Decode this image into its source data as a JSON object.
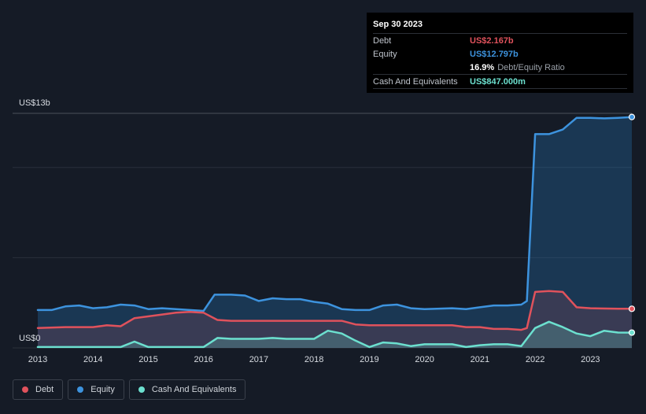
{
  "tooltip": {
    "date": "Sep 30 2023",
    "debt_label": "Debt",
    "debt_value": "US$2.167b",
    "equity_label": "Equity",
    "equity_value": "US$12.797b",
    "ratio_value": "16.9%",
    "ratio_label": "Debt/Equity Ratio",
    "cash_label": "Cash And Equivalents",
    "cash_value": "US$847.000m"
  },
  "colors": {
    "debt": "#e0525c",
    "equity": "#3d93de",
    "cash": "#6ce0cf",
    "background": "#151b26",
    "grid": "#2a303b"
  },
  "chart_data": {
    "type": "area",
    "ylabel_top": "US$13b",
    "ylabel_bottom": "US$0",
    "ylim": [
      0,
      13
    ],
    "xlim": [
      2013.0,
      2023.75
    ],
    "x_ticks": [
      "2013",
      "2014",
      "2015",
      "2016",
      "2017",
      "2018",
      "2019",
      "2020",
      "2021",
      "2022",
      "2023"
    ],
    "grid": true,
    "legend_position": "bottom-left",
    "series": [
      {
        "name": "Debt",
        "color": "#e0525c",
        "points": [
          [
            2013.0,
            1.1
          ],
          [
            2013.5,
            1.15
          ],
          [
            2014.0,
            1.15
          ],
          [
            2014.25,
            1.25
          ],
          [
            2014.5,
            1.2
          ],
          [
            2014.75,
            1.65
          ],
          [
            2015.25,
            1.85
          ],
          [
            2015.5,
            1.95
          ],
          [
            2015.75,
            2.0
          ],
          [
            2016.0,
            1.95
          ],
          [
            2016.25,
            1.55
          ],
          [
            2016.5,
            1.5
          ],
          [
            2017.0,
            1.5
          ],
          [
            2017.5,
            1.5
          ],
          [
            2018.0,
            1.5
          ],
          [
            2018.5,
            1.5
          ],
          [
            2018.75,
            1.3
          ],
          [
            2019.0,
            1.25
          ],
          [
            2019.5,
            1.25
          ],
          [
            2020.0,
            1.25
          ],
          [
            2020.5,
            1.25
          ],
          [
            2020.75,
            1.15
          ],
          [
            2021.0,
            1.15
          ],
          [
            2021.25,
            1.05
          ],
          [
            2021.5,
            1.05
          ],
          [
            2021.75,
            1.0
          ],
          [
            2021.85,
            1.1
          ],
          [
            2022.0,
            3.1
          ],
          [
            2022.25,
            3.15
          ],
          [
            2022.5,
            3.1
          ],
          [
            2022.75,
            2.25
          ],
          [
            2023.0,
            2.2
          ],
          [
            2023.5,
            2.17
          ],
          [
            2023.75,
            2.167
          ]
        ]
      },
      {
        "name": "Equity",
        "color": "#3d93de",
        "points": [
          [
            2013.0,
            2.1
          ],
          [
            2013.25,
            2.1
          ],
          [
            2013.5,
            2.3
          ],
          [
            2013.75,
            2.35
          ],
          [
            2014.0,
            2.2
          ],
          [
            2014.25,
            2.25
          ],
          [
            2014.5,
            2.4
          ],
          [
            2014.75,
            2.35
          ],
          [
            2015.0,
            2.15
          ],
          [
            2015.25,
            2.2
          ],
          [
            2015.5,
            2.15
          ],
          [
            2015.75,
            2.1
          ],
          [
            2016.0,
            2.05
          ],
          [
            2016.2,
            2.95
          ],
          [
            2016.5,
            2.95
          ],
          [
            2016.75,
            2.9
          ],
          [
            2017.0,
            2.6
          ],
          [
            2017.25,
            2.75
          ],
          [
            2017.5,
            2.7
          ],
          [
            2017.75,
            2.7
          ],
          [
            2018.0,
            2.55
          ],
          [
            2018.25,
            2.45
          ],
          [
            2018.5,
            2.15
          ],
          [
            2018.75,
            2.1
          ],
          [
            2019.0,
            2.1
          ],
          [
            2019.25,
            2.35
          ],
          [
            2019.5,
            2.4
          ],
          [
            2019.75,
            2.2
          ],
          [
            2020.0,
            2.15
          ],
          [
            2020.5,
            2.2
          ],
          [
            2020.75,
            2.15
          ],
          [
            2021.0,
            2.25
          ],
          [
            2021.25,
            2.35
          ],
          [
            2021.5,
            2.35
          ],
          [
            2021.75,
            2.4
          ],
          [
            2021.85,
            2.6
          ],
          [
            2022.0,
            11.85
          ],
          [
            2022.25,
            11.85
          ],
          [
            2022.5,
            12.1
          ],
          [
            2022.75,
            12.75
          ],
          [
            2023.0,
            12.75
          ],
          [
            2023.25,
            12.72
          ],
          [
            2023.5,
            12.75
          ],
          [
            2023.75,
            12.797
          ]
        ]
      },
      {
        "name": "Cash And Equivalents",
        "color": "#6ce0cf",
        "points": [
          [
            2013.0,
            0.05
          ],
          [
            2013.5,
            0.05
          ],
          [
            2014.0,
            0.05
          ],
          [
            2014.5,
            0.05
          ],
          [
            2014.75,
            0.35
          ],
          [
            2015.0,
            0.05
          ],
          [
            2015.5,
            0.05
          ],
          [
            2016.0,
            0.05
          ],
          [
            2016.25,
            0.55
          ],
          [
            2016.5,
            0.5
          ],
          [
            2017.0,
            0.5
          ],
          [
            2017.25,
            0.55
          ],
          [
            2017.5,
            0.5
          ],
          [
            2018.0,
            0.5
          ],
          [
            2018.25,
            0.95
          ],
          [
            2018.5,
            0.8
          ],
          [
            2018.75,
            0.4
          ],
          [
            2019.0,
            0.05
          ],
          [
            2019.25,
            0.3
          ],
          [
            2019.5,
            0.25
          ],
          [
            2019.75,
            0.1
          ],
          [
            2020.0,
            0.2
          ],
          [
            2020.5,
            0.2
          ],
          [
            2020.75,
            0.05
          ],
          [
            2021.0,
            0.15
          ],
          [
            2021.25,
            0.2
          ],
          [
            2021.5,
            0.2
          ],
          [
            2021.75,
            0.1
          ],
          [
            2022.0,
            1.1
          ],
          [
            2022.25,
            1.45
          ],
          [
            2022.5,
            1.15
          ],
          [
            2022.75,
            0.8
          ],
          [
            2023.0,
            0.65
          ],
          [
            2023.25,
            0.95
          ],
          [
            2023.5,
            0.85
          ],
          [
            2023.75,
            0.847
          ]
        ]
      }
    ]
  },
  "legend": [
    {
      "label": "Debt",
      "color": "#e0525c"
    },
    {
      "label": "Equity",
      "color": "#3d93de"
    },
    {
      "label": "Cash And Equivalents",
      "color": "#6ce0cf"
    }
  ]
}
